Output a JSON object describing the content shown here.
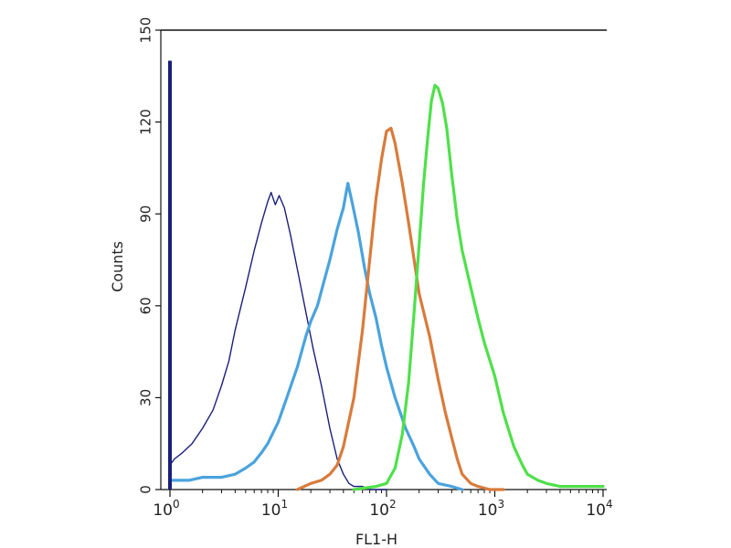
{
  "chart_data": {
    "type": "line",
    "xlabel": "FL1-H",
    "ylabel": "Counts",
    "x_scale": "log",
    "xlim": [
      1,
      10000
    ],
    "ylim": [
      0,
      150
    ],
    "y_ticks": [
      0,
      30,
      60,
      90,
      120,
      150
    ],
    "x_ticks": [
      {
        "base": "10",
        "exp": "0"
      },
      {
        "base": "10",
        "exp": "1"
      },
      {
        "base": "10",
        "exp": "2"
      },
      {
        "base": "10",
        "exp": "3"
      },
      {
        "base": "10",
        "exp": "4"
      }
    ],
    "grid": false,
    "series": [
      {
        "color": "#1a1f7a",
        "width": 1.4,
        "x": [
          1,
          1.1,
          1.3,
          1.6,
          2,
          2.5,
          3,
          3.5,
          4,
          5,
          6,
          7,
          8,
          8.6,
          9.4,
          10.2,
          11.4,
          13,
          15,
          18,
          21,
          25,
          30,
          35,
          40,
          45,
          50,
          60,
          70,
          80,
          90,
          100
        ],
        "y": [
          8,
          10,
          12,
          15,
          20,
          26,
          34,
          42,
          52,
          66,
          78,
          87,
          94,
          97,
          93,
          96,
          92,
          83,
          72,
          58,
          46,
          34,
          20,
          10,
          5,
          2,
          1,
          1,
          0,
          0,
          0,
          0
        ]
      },
      {
        "color": "#4aa3dd",
        "width": 3.2,
        "x": [
          1,
          1.2,
          1.5,
          2,
          3,
          4,
          5,
          6,
          7,
          8,
          10,
          12,
          15,
          18,
          20,
          23,
          26,
          30,
          35,
          40,
          44,
          48,
          55,
          63,
          70,
          80,
          90,
          100,
          120,
          150,
          180,
          200,
          250,
          300,
          400,
          500
        ],
        "y": [
          3,
          3,
          3,
          4,
          4,
          5,
          7,
          9,
          12,
          15,
          22,
          30,
          40,
          50,
          55,
          60,
          67,
          75,
          85,
          92,
          100,
          94,
          84,
          72,
          64,
          56,
          47,
          40,
          30,
          20,
          14,
          10,
          5,
          2,
          1,
          0
        ]
      },
      {
        "color": "#d97b3c",
        "width": 3.2,
        "x": [
          15,
          20,
          25,
          30,
          35,
          40,
          50,
          60,
          70,
          80,
          90,
          100,
          110,
          120,
          140,
          160,
          180,
          200,
          220,
          250,
          300,
          350,
          400,
          450,
          500,
          600,
          700,
          900,
          1000,
          1200
        ],
        "y": [
          0,
          2,
          3,
          5,
          8,
          14,
          30,
          52,
          75,
          95,
          108,
          117,
          118,
          113,
          100,
          87,
          75,
          64,
          58,
          50,
          36,
          25,
          17,
          10,
          5,
          2,
          1,
          0,
          0,
          0
        ]
      },
      {
        "color": "#4fe04a",
        "width": 3.2,
        "x": [
          50,
          80,
          100,
          120,
          140,
          160,
          180,
          200,
          220,
          240,
          260,
          280,
          300,
          330,
          360,
          400,
          450,
          500,
          600,
          700,
          800,
          1000,
          1200,
          1500,
          1800,
          2000,
          2500,
          3000,
          4000,
          5000,
          7000,
          10000
        ],
        "y": [
          0,
          1,
          2,
          7,
          18,
          35,
          58,
          80,
          100,
          115,
          127,
          132,
          131,
          126,
          118,
          103,
          88,
          78,
          66,
          56,
          48,
          37,
          25,
          14,
          8,
          5,
          3,
          2,
          1,
          1,
          1,
          1
        ]
      }
    ]
  }
}
